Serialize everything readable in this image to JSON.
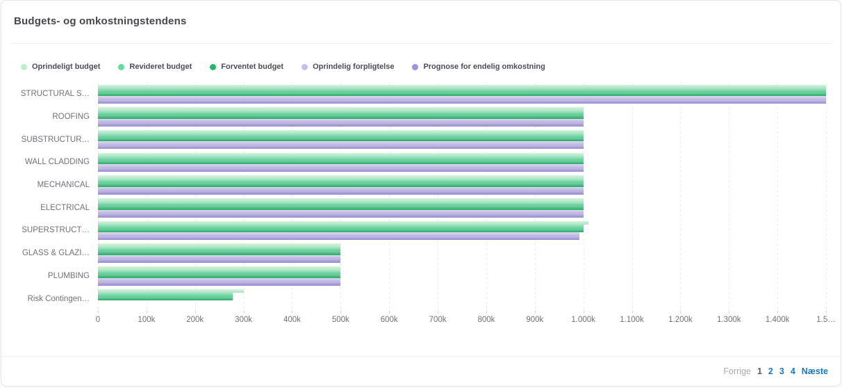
{
  "card": {
    "title": "Budgets- og omkostningstendens"
  },
  "legend": [
    {
      "label": "Oprindeligt budget",
      "color": "#b9efcd"
    },
    {
      "label": "Revideret budget",
      "color": "#65d8a0"
    },
    {
      "label": "Forventet budget",
      "color": "#29b56c"
    },
    {
      "label": "Oprindelig forpligtelse",
      "color": "#c6bfea"
    },
    {
      "label": "Prognose for endelig omkostning",
      "color": "#9e93dc"
    }
  ],
  "chart_data": {
    "type": "bar",
    "orientation": "horizontal",
    "title": "Budgets- og omkostningstendens",
    "categories": [
      "STRUCTURAL S…",
      "ROOFING",
      "SUBSTRUCTUR…",
      "WALL CLADDING",
      "MECHANICAL",
      "ELECTRICAL",
      "SUPERSTRUCT…",
      "GLASS & GLAZI…",
      "PLUMBING",
      "Risk Contingen…"
    ],
    "series": [
      {
        "name": "Oprindeligt budget",
        "color": "#b9efcd",
        "values": [
          1500000,
          1000000,
          1000000,
          1000000,
          1000000,
          1000000,
          1010000,
          500000,
          500000,
          300000
        ]
      },
      {
        "name": "Revideret budget",
        "color": "#65d8a0",
        "values": [
          1500000,
          1000000,
          1000000,
          1000000,
          1000000,
          1000000,
          1000000,
          500000,
          500000,
          278000
        ]
      },
      {
        "name": "Forventet budget",
        "color": "#29b56c",
        "values": [
          1500000,
          1000000,
          1000000,
          1000000,
          1000000,
          1000000,
          1000000,
          500000,
          500000,
          278000
        ]
      },
      {
        "name": "Oprindelig forpligtelse",
        "color": "#c6bfea",
        "values": [
          1500000,
          1000000,
          1000000,
          1000000,
          1000000,
          1000000,
          992000,
          500000,
          500000,
          0
        ]
      },
      {
        "name": "Prognose for endelig omkostning",
        "color": "#9e93dc",
        "values": [
          1500000,
          1000000,
          1000000,
          1000000,
          1000000,
          1000000,
          992000,
          500000,
          500000,
          0
        ]
      }
    ],
    "xlim": [
      0,
      1500000
    ],
    "x_tick_labels": [
      "0",
      "100k",
      "200k",
      "300k",
      "400k",
      "500k",
      "600k",
      "700k",
      "800k",
      "900k",
      "1.000k",
      "1.100k",
      "1.200k",
      "1.300k",
      "1.400k",
      "1.5…"
    ],
    "grid": "vertical-dashed",
    "legend_position": "top"
  },
  "pagination": {
    "prev_label": "Forrige",
    "pages": [
      "1",
      "2",
      "3",
      "4"
    ],
    "current_page": "1",
    "next_label": "Næste"
  }
}
